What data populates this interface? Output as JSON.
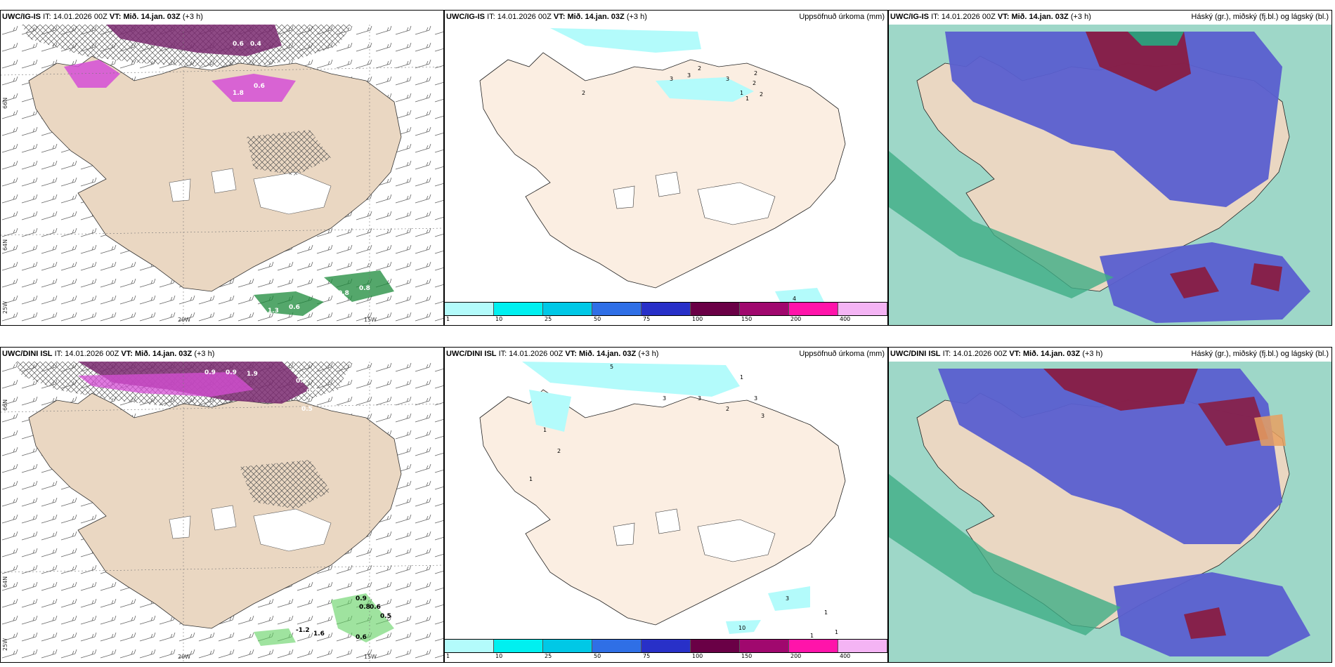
{
  "rows": [
    {
      "model": "UWC/IG-IS",
      "panels": [
        {
          "it_label": "IT:",
          "it_value": "14.01.2026 00Z",
          "vt_label": "VT:",
          "vt_value": "Mið. 14.jan. 03Z",
          "lead": "(+3 h)",
          "right_title": ""
        },
        {
          "it_label": "IT:",
          "it_value": "14.01.2026 00Z",
          "vt_label": "VT:",
          "vt_value": "Mið. 14.jan. 03Z",
          "lead": "(+3 h)",
          "right_title": "Uppsöfnuð úrkoma (mm)"
        },
        {
          "it_label": "IT:",
          "it_value": "14.01.2026 00Z",
          "vt_label": "VT:",
          "vt_value": "Mið. 14.jan. 03Z",
          "lead": "(+3 h)",
          "right_title": "Háský (gr.), miðský (fj.bl.) og lágský (bl.)"
        }
      ],
      "precip_labels": [
        "1.8",
        "0.6",
        "1.3",
        "0.6",
        "0.8",
        "0.6",
        "0.8",
        "0.6",
        "0.4"
      ],
      "accum_labels": [
        "2",
        "2",
        "3",
        "3",
        "3",
        "2",
        "2",
        "1",
        "1",
        "2",
        "1",
        "3",
        "4"
      ]
    },
    {
      "model": "UWC/DINI ISL",
      "panels": [
        {
          "it_label": "IT:",
          "it_value": "14.01.2026 00Z",
          "vt_label": "VT:",
          "vt_value": "Mið. 14.jan. 03Z",
          "lead": "(+3 h)",
          "right_title": ""
        },
        {
          "it_label": "IT:",
          "it_value": "14.01.2026 00Z",
          "vt_label": "VT:",
          "vt_value": "Mið. 14.jan. 03Z",
          "lead": "(+3 h)",
          "right_title": "Uppsöfnuð úrkoma (mm)"
        },
        {
          "it_label": "IT:",
          "it_value": "14.01.2026 00Z",
          "vt_label": "VT:",
          "vt_value": "Mið. 14.jan. 03Z",
          "lead": "(+3 h)",
          "right_title": "Háský (gr.), miðský (fj.bl.) og lágský (bl.)"
        }
      ],
      "precip_labels": [
        "-1.2",
        "1.6",
        "0.9",
        "0.8",
        "0.6",
        "0.5",
        "0.6",
        "0.9",
        "0.9",
        "1.9",
        "0.3",
        "0.7",
        "0.5"
      ],
      "accum_labels": [
        "5",
        "1",
        "3",
        "3",
        "2",
        "3",
        "3",
        "1",
        "2",
        "1",
        "3",
        "1",
        "10",
        "1",
        "1"
      ]
    }
  ],
  "axes": {
    "lat_labels": [
      "66N",
      "64N"
    ],
    "lon_labels": [
      "20W",
      "15W"
    ],
    "extra_lat": "25W"
  },
  "colorbar": {
    "ticks": [
      "1",
      "10",
      "25",
      "50",
      "75",
      "100",
      "150",
      "200",
      "400"
    ],
    "colors": [
      "#b3fbfb",
      "#00f0f0",
      "#00c8e6",
      "#2f6fe6",
      "#2830c8",
      "#6a0046",
      "#a0086e",
      "#ff14aa",
      "#f4b4f4"
    ]
  },
  "colors": {
    "land": "#ead7c2",
    "land_light": "#fbeee2",
    "high_cloud": "#5a5fd0",
    "mid_cloud": "#8b1a3c",
    "low_cloud": "#4fb79a"
  }
}
